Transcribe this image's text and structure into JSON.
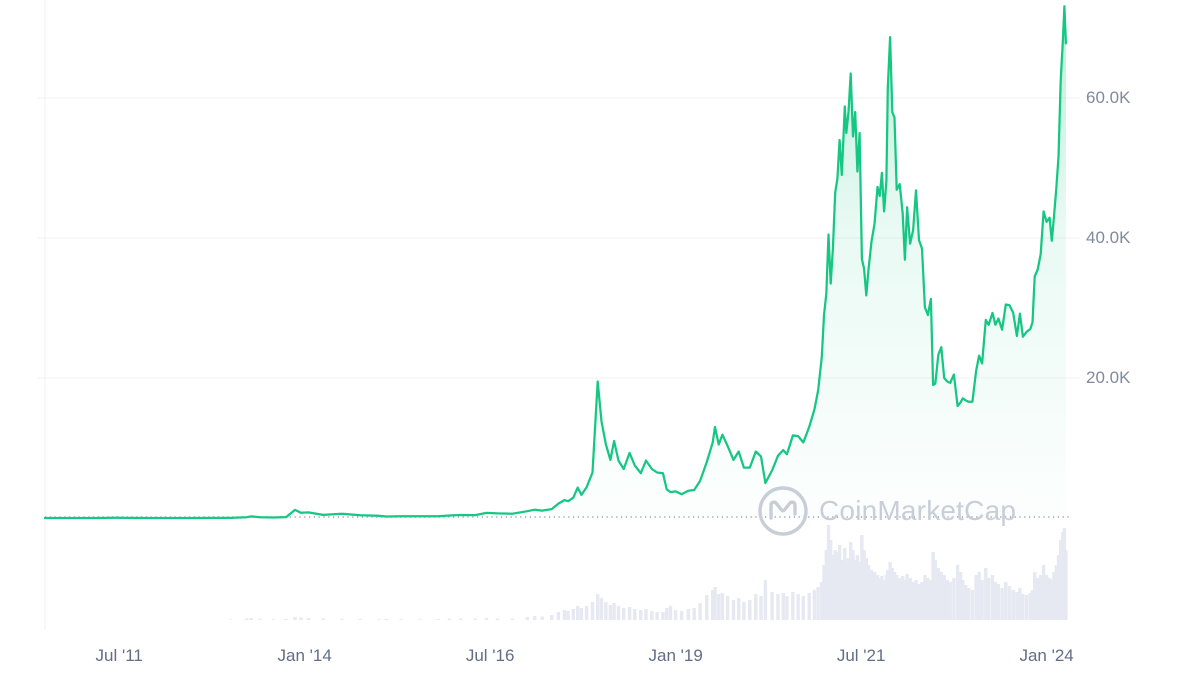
{
  "watermark": {
    "label": "CoinMarketCap"
  },
  "colors": {
    "line": "#16c784",
    "area_top": "rgba(22,199,132,0.30)",
    "area_mid": "rgba(22,199,132,0.09)",
    "area_bottom": "rgba(22,199,132,0.01)",
    "grid": "#eff2f5",
    "baseline_dots": "#9aa2af",
    "volume": "#e6e8f2",
    "y_tick_text": "#808a9d",
    "x_tick_text": "#616e85",
    "watermark_gray": "#c8ced8"
  },
  "chart_data": {
    "type": "area",
    "title": "",
    "grid": true,
    "legend": "none",
    "x_range": [
      2010.5,
      2024.45
    ],
    "y_range": [
      0,
      74000
    ],
    "baseline_value": 0.06,
    "y_ticks": [
      {
        "label": "60.0K",
        "value": 60000
      },
      {
        "label": "40.0K",
        "value": 40000
      },
      {
        "label": "20.0K",
        "value": 20000
      }
    ],
    "x_ticks": [
      {
        "label": "Jul '11",
        "value": 2011.5
      },
      {
        "label": "Jan '14",
        "value": 2014.0
      },
      {
        "label": "Jul '16",
        "value": 2016.5
      },
      {
        "label": "Jan '19",
        "value": 2019.0
      },
      {
        "label": "Jul '21",
        "value": 2021.5
      },
      {
        "label": "Jan '24",
        "value": 2024.0
      }
    ],
    "x": [
      2010.5,
      2010.75,
      2011.0,
      2011.2,
      2011.45,
      2011.6,
      2011.9,
      2012.2,
      2012.5,
      2012.8,
      2013.0,
      2013.22,
      2013.28,
      2013.4,
      2013.58,
      2013.75,
      2013.87,
      2013.95,
      2014.05,
      2014.25,
      2014.5,
      2014.75,
      2015.0,
      2015.1,
      2015.3,
      2015.55,
      2015.8,
      2015.95,
      2016.1,
      2016.3,
      2016.45,
      2016.6,
      2016.8,
      2017.0,
      2017.1,
      2017.2,
      2017.33,
      2017.42,
      2017.5,
      2017.55,
      2017.62,
      2017.68,
      2017.73,
      2017.8,
      2017.88,
      2017.95,
      2018.0,
      2018.06,
      2018.12,
      2018.17,
      2018.23,
      2018.3,
      2018.38,
      2018.45,
      2018.53,
      2018.6,
      2018.68,
      2018.75,
      2018.83,
      2018.88,
      2018.93,
      2019.0,
      2019.08,
      2019.17,
      2019.25,
      2019.33,
      2019.42,
      2019.5,
      2019.53,
      2019.58,
      2019.63,
      2019.7,
      2019.78,
      2019.85,
      2019.92,
      2020.0,
      2020.08,
      2020.15,
      2020.21,
      2020.3,
      2020.38,
      2020.45,
      2020.5,
      2020.58,
      2020.65,
      2020.72,
      2020.8,
      2020.87,
      2020.92,
      2020.97,
      2021.0,
      2021.03,
      2021.06,
      2021.09,
      2021.12,
      2021.15,
      2021.18,
      2021.21,
      2021.24,
      2021.28,
      2021.3,
      2021.33,
      2021.36,
      2021.39,
      2021.42,
      2021.45,
      2021.48,
      2021.51,
      2021.54,
      2021.57,
      2021.6,
      2021.64,
      2021.68,
      2021.72,
      2021.75,
      2021.78,
      2021.81,
      2021.84,
      2021.86,
      2021.89,
      2021.92,
      2021.95,
      2021.98,
      2022.02,
      2022.06,
      2022.09,
      2022.12,
      2022.16,
      2022.2,
      2022.24,
      2022.28,
      2022.32,
      2022.36,
      2022.4,
      2022.44,
      2022.47,
      2022.5,
      2022.54,
      2022.58,
      2022.62,
      2022.66,
      2022.7,
      2022.75,
      2022.8,
      2022.84,
      2022.87,
      2022.91,
      2022.95,
      2023.0,
      2023.05,
      2023.09,
      2023.13,
      2023.18,
      2023.22,
      2023.27,
      2023.31,
      2023.35,
      2023.4,
      2023.45,
      2023.5,
      2023.55,
      2023.6,
      2023.64,
      2023.68,
      2023.73,
      2023.78,
      2023.81,
      2023.84,
      2023.88,
      2023.92,
      2023.96,
      2024.0,
      2024.04,
      2024.07,
      2024.1,
      2024.13,
      2024.16,
      2024.19,
      2024.22,
      2024.24,
      2024.26
    ],
    "series": [
      {
        "name": "price_usd",
        "type": "line",
        "color": "#16c784",
        "values": [
          0.06,
          0.06,
          0.3,
          0.9,
          29,
          13,
          3,
          5,
          6.7,
          11,
          13,
          110,
          230,
          95,
          70,
          130,
          1150,
          750,
          800,
          450,
          600,
          380,
          315,
          220,
          245,
          260,
          240,
          360,
          430,
          415,
          730,
          660,
          615,
          970,
          1180,
          1060,
          1270,
          2050,
          2550,
          2400,
          2900,
          4350,
          3300,
          4400,
          6500,
          19500,
          13800,
          10500,
          8300,
          11000,
          8200,
          7000,
          9300,
          7500,
          6400,
          8200,
          7000,
          6500,
          6400,
          4100,
          3700,
          3800,
          3400,
          3900,
          4000,
          5300,
          8000,
          10800,
          13000,
          10500,
          11900,
          10300,
          8300,
          9500,
          7200,
          7200,
          9500,
          8800,
          5000,
          6800,
          8900,
          9700,
          9100,
          11800,
          11700,
          10800,
          13000,
          15500,
          18200,
          23000,
          29000,
          32000,
          40500,
          33500,
          38500,
          46500,
          48500,
          54000,
          49000,
          58800,
          55000,
          58000,
          63500,
          54500,
          58000,
          49500,
          55000,
          37000,
          35600,
          31800,
          35500,
          39500,
          42000,
          47300,
          46000,
          49300,
          43800,
          48200,
          61500,
          68700,
          58000,
          57200,
          46900,
          47700,
          43500,
          36900,
          44400,
          39200,
          41100,
          46800,
          39700,
          38500,
          30100,
          29000,
          31300,
          19000,
          19200,
          23300,
          24400,
          20000,
          19500,
          19300,
          20500,
          16000,
          16500,
          17100,
          16800,
          16600,
          16600,
          21000,
          23200,
          22100,
          28300,
          27600,
          29300,
          27600,
          28500,
          26900,
          30500,
          30400,
          29300,
          26000,
          29200,
          25900,
          26600,
          27000,
          27950,
          34500,
          35500,
          37700,
          43800,
          42300,
          42900,
          39600,
          43100,
          47100,
          51600,
          62500,
          68300,
          73100,
          67800
        ]
      },
      {
        "name": "volume_relative",
        "type": "bar",
        "color": "#e6e8f2",
        "values": [
          0,
          0,
          0,
          0,
          0.3,
          0.2,
          0.1,
          0.1,
          0.2,
          0.3,
          0.5,
          1.5,
          2,
          1.2,
          0.8,
          1,
          3,
          2.5,
          2,
          1.5,
          1.2,
          1,
          0.8,
          1,
          0.8,
          0.8,
          1,
          1.5,
          1.5,
          1.2,
          2,
          1.5,
          1.3,
          3,
          4,
          3.5,
          5,
          8,
          10,
          9,
          11,
          14,
          12,
          14,
          18,
          26,
          22,
          18,
          15,
          17,
          14,
          12,
          13,
          11,
          10,
          11,
          9,
          8,
          8,
          12,
          14,
          10,
          9,
          11,
          12,
          17,
          25,
          30,
          33,
          26,
          27,
          24,
          20,
          22,
          18,
          20,
          26,
          24,
          40,
          28,
          26,
          27,
          24,
          28,
          26,
          24,
          27,
          30,
          33,
          38,
          55,
          70,
          95,
          80,
          65,
          70,
          68,
          75,
          60,
          72,
          58,
          62,
          78,
          70,
          60,
          65,
          58,
          85,
          70,
          62,
          55,
          50,
          48,
          45,
          42,
          44,
          40,
          45,
          50,
          58,
          52,
          48,
          45,
          42,
          44,
          40,
          46,
          42,
          38,
          40,
          36,
          38,
          45,
          42,
          40,
          68,
          60,
          52,
          48,
          45,
          40,
          38,
          42,
          55,
          48,
          40,
          35,
          32,
          30,
          45,
          48,
          40,
          52,
          42,
          45,
          38,
          36,
          32,
          38,
          34,
          30,
          28,
          32,
          26,
          25,
          27,
          30,
          48,
          42,
          45,
          55,
          45,
          42,
          40,
          48,
          55,
          65,
          80,
          88,
          92,
          70
        ]
      }
    ]
  }
}
